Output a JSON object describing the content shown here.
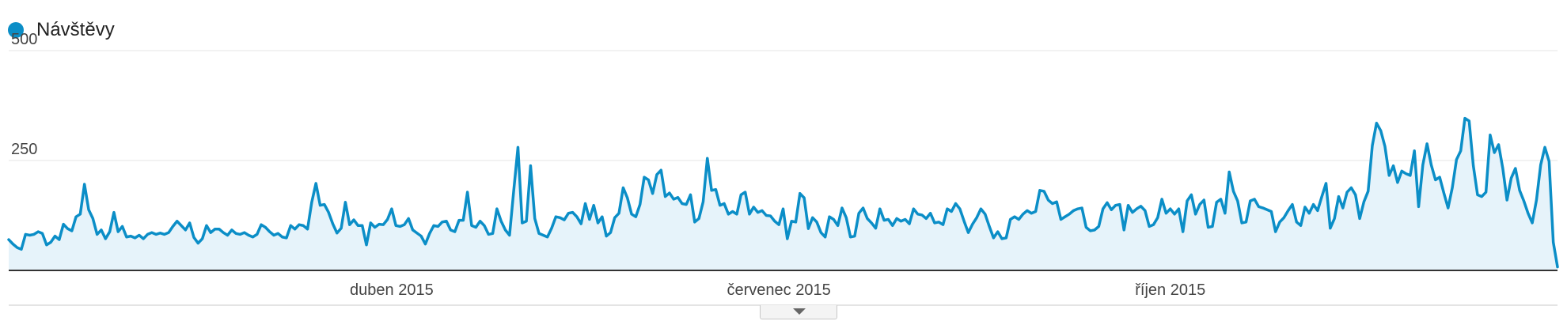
{
  "colors": {
    "series": "#0b8ec7",
    "fill": "#e6f3fa",
    "grid": "#e6e6e6",
    "axis": "#333333"
  },
  "legend": {
    "label": "Návštěvy"
  },
  "chart_data": {
    "type": "area",
    "title": "",
    "xlabel": "",
    "ylabel": "",
    "ylim": [
      0,
      500
    ],
    "y_ticks": [
      250,
      500
    ],
    "grid": true,
    "legend_position": "top-left",
    "x_start": "2015-01-01",
    "x_end": "2015-12-31",
    "x_tick_labels": [
      {
        "date": "2015-04-01",
        "label": "duben 2015"
      },
      {
        "date": "2015-07-01",
        "label": "červenec 2015"
      },
      {
        "date": "2015-10-01",
        "label": "říjen 2015"
      }
    ],
    "series": [
      {
        "name": "Návštěvy",
        "values": [
          70,
          60,
          52,
          48,
          82,
          80,
          82,
          88,
          84,
          58,
          64,
          78,
          70,
          105,
          95,
          90,
          122,
          128,
          196,
          138,
          118,
          82,
          92,
          72,
          88,
          132,
          88,
          100,
          76,
          78,
          74,
          80,
          72,
          82,
          86,
          82,
          85,
          82,
          86,
          100,
          112,
          102,
          92,
          108,
          75,
          62,
          72,
          102,
          86,
          94,
          94,
          86,
          80,
          92,
          84,
          82,
          86,
          80,
          76,
          82,
          104,
          98,
          88,
          80,
          84,
          76,
          74,
          102,
          94,
          104,
          102,
          94,
          155,
          198,
          148,
          150,
          132,
          106,
          85,
          96,
          155,
          104,
          115,
          102,
          102,
          58,
          108,
          98,
          105,
          104,
          116,
          140,
          102,
          100,
          104,
          118,
          92,
          85,
          78,
          60,
          84,
          102,
          100,
          110,
          112,
          92,
          88,
          114,
          114,
          178,
          102,
          98,
          112,
          102,
          82,
          84,
          140,
          112,
          92,
          80,
          182,
          280,
          108,
          112,
          238,
          118,
          84,
          80,
          76,
          96,
          122,
          120,
          115,
          130,
          132,
          122,
          106,
          152,
          116,
          148,
          108,
          122,
          78,
          86,
          120,
          130,
          188,
          165,
          128,
          122,
          150,
          212,
          206,
          175,
          218,
          228,
          168,
          176,
          162,
          166,
          152,
          150,
          172,
          110,
          118,
          156,
          255,
          182,
          184,
          148,
          152,
          128,
          134,
          128,
          172,
          178,
          128,
          144,
          132,
          136,
          125,
          124,
          112,
          104,
          140,
          72,
          112,
          110,
          175,
          165,
          95,
          120,
          110,
          86,
          76,
          122,
          116,
          102,
          142,
          120,
          76,
          78,
          130,
          142,
          118,
          108,
          96,
          140,
          114,
          116,
          102,
          118,
          112,
          116,
          106,
          140,
          128,
          126,
          118,
          130,
          108,
          110,
          104,
          140,
          134,
          152,
          140,
          112,
          86,
          105,
          120,
          140,
          128,
          100,
          74,
          88,
          72,
          74,
          116,
          122,
          116,
          128,
          136,
          130,
          134,
          182,
          180,
          160,
          152,
          156,
          116,
          122,
          128,
          136,
          140,
          142,
          98,
          90,
          92,
          100,
          140,
          154,
          138,
          148,
          150,
          92,
          148,
          132,
          140,
          146,
          136,
          100,
          104,
          120,
          162,
          130,
          140,
          128,
          140,
          88,
          158,
          172,
          128,
          150,
          160,
          98,
          100,
          155,
          162,
          130,
          224,
          180,
          158,
          108,
          110,
          158,
          162,
          145,
          142,
          138,
          134,
          88,
          110,
          120,
          136,
          150,
          110,
          102,
          144,
          130,
          150,
          136,
          168,
          198,
          96,
          118,
          168,
          142,
          178,
          188,
          172,
          118,
          156,
          180,
          284,
          335,
          318,
          282,
          216,
          238,
          200,
          226,
          220,
          216,
          272,
          145,
          240,
          288,
          240,
          206,
          212,
          176,
          142,
          188,
          252,
          272,
          346,
          340,
          238,
          172,
          168,
          178,
          308,
          268,
          286,
          232,
          160,
          210,
          232,
          182,
          158,
          130,
          108,
          160,
          240,
          280,
          248,
          64,
          8
        ]
      }
    ]
  }
}
